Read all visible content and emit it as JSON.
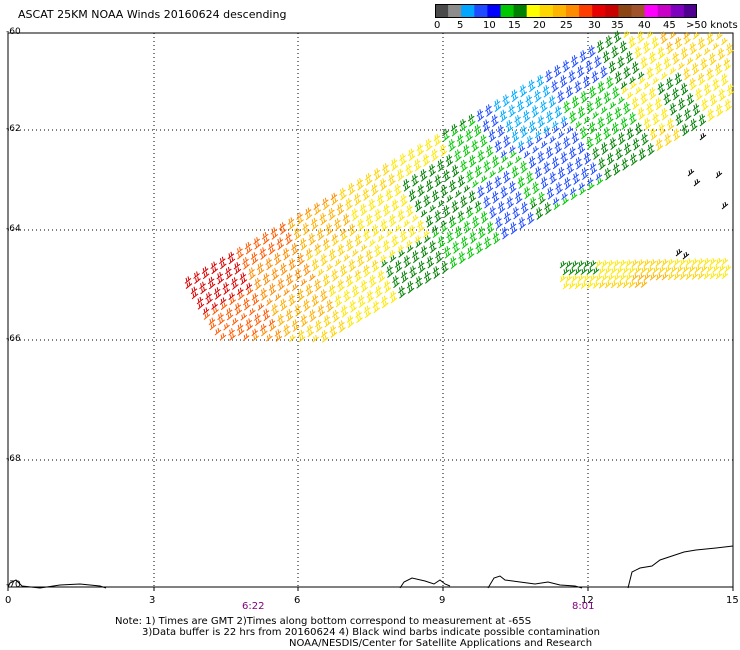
{
  "title": "ASCAT 25KM NOAA Winds 20160624 descending",
  "colorbar": {
    "colors": [
      "#4a4a4a",
      "#8c8c8c",
      "#00a6ff",
      "#1f4bff",
      "#0000ff",
      "#00c800",
      "#008000",
      "#ffff00",
      "#ffd700",
      "#ffb400",
      "#ff8c00",
      "#ff3c00",
      "#e60000",
      "#c80000",
      "#8b4513",
      "#a0522d",
      "#ff00ff",
      "#c800c8",
      "#8000c0",
      "#500090"
    ],
    "labels": [
      "0",
      "5",
      "10",
      "15",
      "20",
      "25",
      "30",
      "35",
      "40",
      "45",
      ">50 knots"
    ]
  },
  "lat_labels": [
    "-60",
    "-62",
    "-64",
    "-66",
    "-68",
    "-70"
  ],
  "lon_labels": [
    "0",
    "3",
    "6",
    "9",
    "12",
    "15"
  ],
  "time_labels": [
    "6:22",
    "8:01"
  ],
  "notes": [
    "Note: 1) Times are GMT 2)Times along bottom correspond to measurement at -65S",
    "3)Data buffer is 22 hrs from 20160624 4) Black wind barbs indicate possible contamination",
    "NOAA/NESDIS/Center for Satellite Applications and Research"
  ],
  "chart_data": {
    "type": "scatter",
    "description_units": "wind speed knots",
    "x_range": [
      0,
      15
    ],
    "y_range": [
      -70,
      -60
    ],
    "grid": true,
    "swaths": [
      {
        "lon_start": 4.2,
        "lon_end": 15,
        "lat_start": -66.0,
        "lat_end": -60.2,
        "speed_knots": [
          30,
          27,
          24,
          21,
          18,
          14,
          10,
          15,
          20,
          24
        ]
      },
      {
        "lon_start": 11.2,
        "lon_end": 15,
        "lat_start": -65.2,
        "lat_end": -64.8,
        "speed_knots": [
          20,
          22,
          25,
          24,
          22
        ]
      }
    ]
  }
}
